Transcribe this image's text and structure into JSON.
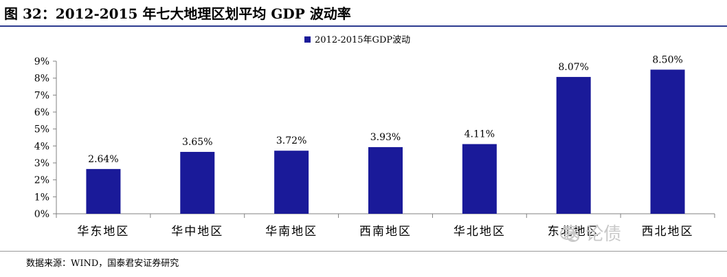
{
  "figure_title": "图 32：2012-2015 年七大地理区划平均 GDP 波动率",
  "source": "数据来源：WIND，国泰君安证券研究",
  "watermark": "寒 论债",
  "colors": {
    "bar": "#1a1a99",
    "axis": "#808080",
    "title_rule": "#2b3a8f"
  },
  "chart_data": {
    "type": "bar",
    "title": "",
    "xlabel": "",
    "ylabel": "",
    "categories": [
      "华东地区",
      "华中地区",
      "华南地区",
      "西南地区",
      "华北地区",
      "东北地区",
      "西北地区"
    ],
    "series": [
      {
        "name": "2012-2015年GDP波动",
        "values": [
          2.64,
          3.65,
          3.72,
          3.93,
          4.11,
          8.07,
          8.5
        ]
      }
    ],
    "value_labels": [
      "2.64%",
      "3.65%",
      "3.72%",
      "3.93%",
      "4.11%",
      "8.07%",
      "8.50%"
    ],
    "ylim": [
      0,
      9
    ],
    "yticks": [
      "0%",
      "1%",
      "2%",
      "3%",
      "4%",
      "5%",
      "6%",
      "7%",
      "8%",
      "9%"
    ],
    "grid": false,
    "legend_position": "top"
  }
}
